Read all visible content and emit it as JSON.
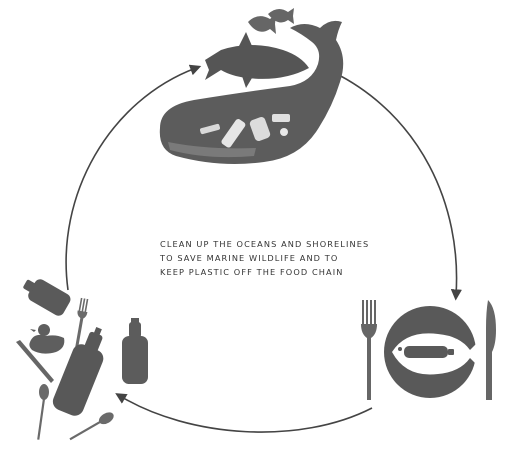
{
  "message": {
    "line1": "CLEAN UP THE OCEANS AND SHORELINES",
    "line2": "TO SAVE MARINE WILDLIFE AND TO",
    "line3": "KEEP PLASTIC OFF THE FOOD CHAIN"
  },
  "colors": {
    "ink": "#555555",
    "ink_light": "#7a7a7a",
    "ink_dark": "#3d3d3d",
    "arrow": "#444444",
    "background": "#ffffff"
  },
  "icons": {
    "top": "whale-with-fish-and-plastic-icon",
    "right": "plate-with-fish-containing-bottle-icon",
    "left": "plastic-waste-pile-icon"
  }
}
